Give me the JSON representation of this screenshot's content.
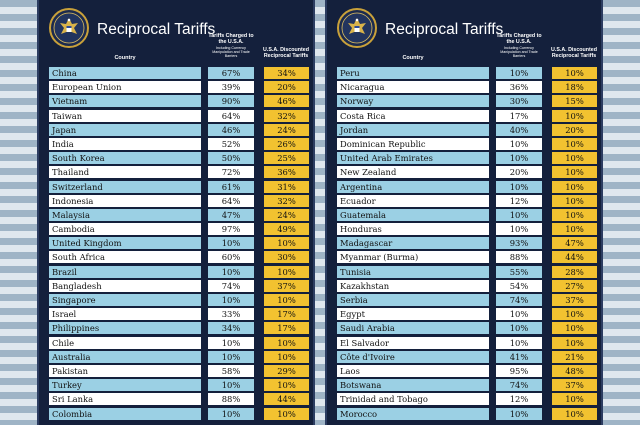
{
  "boards": [
    {
      "title": "Reciprocal Tariffs",
      "headers": {
        "country": "Country",
        "charged": "Tariffs Charged to the U.S.A.",
        "charged_note": "Including Currency Manipulation and Trade Barriers",
        "discounted": "U.S.A. Discounted Reciprocal Tariffs"
      },
      "rows": [
        {
          "country": "China",
          "charged": "67%",
          "discounted": "34%"
        },
        {
          "country": "European Union",
          "charged": "39%",
          "discounted": "20%"
        },
        {
          "country": "Vietnam",
          "charged": "90%",
          "discounted": "46%"
        },
        {
          "country": "Taiwan",
          "charged": "64%",
          "discounted": "32%"
        },
        {
          "country": "Japan",
          "charged": "46%",
          "discounted": "24%"
        },
        {
          "country": "India",
          "charged": "52%",
          "discounted": "26%"
        },
        {
          "country": "South Korea",
          "charged": "50%",
          "discounted": "25%"
        },
        {
          "country": "Thailand",
          "charged": "72%",
          "discounted": "36%"
        },
        {
          "country": "Switzerland",
          "charged": "61%",
          "discounted": "31%"
        },
        {
          "country": "Indonesia",
          "charged": "64%",
          "discounted": "32%"
        },
        {
          "country": "Malaysia",
          "charged": "47%",
          "discounted": "24%"
        },
        {
          "country": "Cambodia",
          "charged": "97%",
          "discounted": "49%"
        },
        {
          "country": "United Kingdom",
          "charged": "10%",
          "discounted": "10%"
        },
        {
          "country": "South Africa",
          "charged": "60%",
          "discounted": "30%"
        },
        {
          "country": "Brazil",
          "charged": "10%",
          "discounted": "10%"
        },
        {
          "country": "Bangladesh",
          "charged": "74%",
          "discounted": "37%"
        },
        {
          "country": "Singapore",
          "charged": "10%",
          "discounted": "10%"
        },
        {
          "country": "Israel",
          "charged": "33%",
          "discounted": "17%"
        },
        {
          "country": "Philippines",
          "charged": "34%",
          "discounted": "17%"
        },
        {
          "country": "Chile",
          "charged": "10%",
          "discounted": "10%"
        },
        {
          "country": "Australia",
          "charged": "10%",
          "discounted": "10%"
        },
        {
          "country": "Pakistan",
          "charged": "58%",
          "discounted": "29%"
        },
        {
          "country": "Turkey",
          "charged": "10%",
          "discounted": "10%"
        },
        {
          "country": "Sri Lanka",
          "charged": "88%",
          "discounted": "44%"
        },
        {
          "country": "Colombia",
          "charged": "10%",
          "discounted": "10%"
        }
      ]
    },
    {
      "title": "Reciprocal Tariffs",
      "headers": {
        "country": "Country",
        "charged": "Tariffs Charged to the U.S.A.",
        "charged_note": "Including Currency Manipulation and Trade Barriers",
        "discounted": "U.S.A. Discounted Reciprocal Tariffs"
      },
      "rows": [
        {
          "country": "Peru",
          "charged": "10%",
          "discounted": "10%"
        },
        {
          "country": "Nicaragua",
          "charged": "36%",
          "discounted": "18%"
        },
        {
          "country": "Norway",
          "charged": "30%",
          "discounted": "15%"
        },
        {
          "country": "Costa Rica",
          "charged": "17%",
          "discounted": "10%"
        },
        {
          "country": "Jordan",
          "charged": "40%",
          "discounted": "20%"
        },
        {
          "country": "Dominican Republic",
          "charged": "10%",
          "discounted": "10%"
        },
        {
          "country": "United Arab Emirates",
          "charged": "10%",
          "discounted": "10%"
        },
        {
          "country": "New Zealand",
          "charged": "20%",
          "discounted": "10%"
        },
        {
          "country": "Argentina",
          "charged": "10%",
          "discounted": "10%"
        },
        {
          "country": "Ecuador",
          "charged": "12%",
          "discounted": "10%"
        },
        {
          "country": "Guatemala",
          "charged": "10%",
          "discounted": "10%"
        },
        {
          "country": "Honduras",
          "charged": "10%",
          "discounted": "10%"
        },
        {
          "country": "Madagascar",
          "charged": "93%",
          "discounted": "47%"
        },
        {
          "country": "Myanmar (Burma)",
          "charged": "88%",
          "discounted": "44%"
        },
        {
          "country": "Tunisia",
          "charged": "55%",
          "discounted": "28%"
        },
        {
          "country": "Kazakhstan",
          "charged": "54%",
          "discounted": "27%"
        },
        {
          "country": "Serbia",
          "charged": "74%",
          "discounted": "37%"
        },
        {
          "country": "Egypt",
          "charged": "10%",
          "discounted": "10%"
        },
        {
          "country": "Saudi Arabia",
          "charged": "10%",
          "discounted": "10%"
        },
        {
          "country": "El Salvador",
          "charged": "10%",
          "discounted": "10%"
        },
        {
          "country": "Côte d'Ivoire",
          "charged": "41%",
          "discounted": "21%"
        },
        {
          "country": "Laos",
          "charged": "95%",
          "discounted": "48%"
        },
        {
          "country": "Botswana",
          "charged": "74%",
          "discounted": "37%"
        },
        {
          "country": "Trinidad and Tobago",
          "charged": "12%",
          "discounted": "10%"
        },
        {
          "country": "Morocco",
          "charged": "10%",
          "discounted": "10%"
        }
      ]
    }
  ],
  "colors": {
    "board": "#14203c",
    "row_blue": "#9bd0e4",
    "row_white": "#ffffff",
    "discount": "#f2c230",
    "seal_ring": "#c9a13a"
  }
}
